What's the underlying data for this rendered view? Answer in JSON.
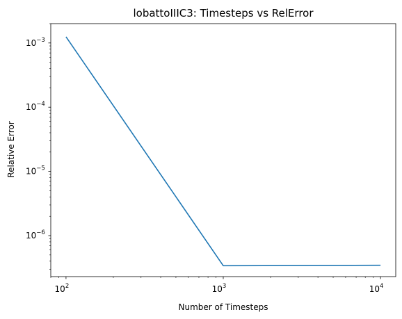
{
  "chart_data": {
    "type": "line",
    "title": "lobattoIIIC3: Timesteps vs RelError",
    "xlabel": "Number of Timesteps",
    "ylabel": "Relative Error",
    "x_scale": "log",
    "y_scale": "log",
    "xlim": [
      80,
      12500
    ],
    "ylim": [
      2.3e-07,
      0.002
    ],
    "grid": false,
    "x_ticks": [
      {
        "value": 100,
        "base": "10",
        "exp": "2"
      },
      {
        "value": 1000,
        "base": "10",
        "exp": "3"
      },
      {
        "value": 10000,
        "base": "10",
        "exp": "4"
      }
    ],
    "y_ticks": [
      {
        "value": 1e-06,
        "base": "10",
        "exp": "−6"
      },
      {
        "value": 1e-05,
        "base": "10",
        "exp": "−5"
      },
      {
        "value": 0.0001,
        "base": "10",
        "exp": "−4"
      },
      {
        "value": 0.001,
        "base": "10",
        "exp": "−3"
      }
    ],
    "series": [
      {
        "color": "#1f77b4",
        "x": [
          100,
          1000,
          10000
        ],
        "y": [
          0.00125,
          3.4e-07,
          3.45e-07
        ]
      }
    ]
  }
}
